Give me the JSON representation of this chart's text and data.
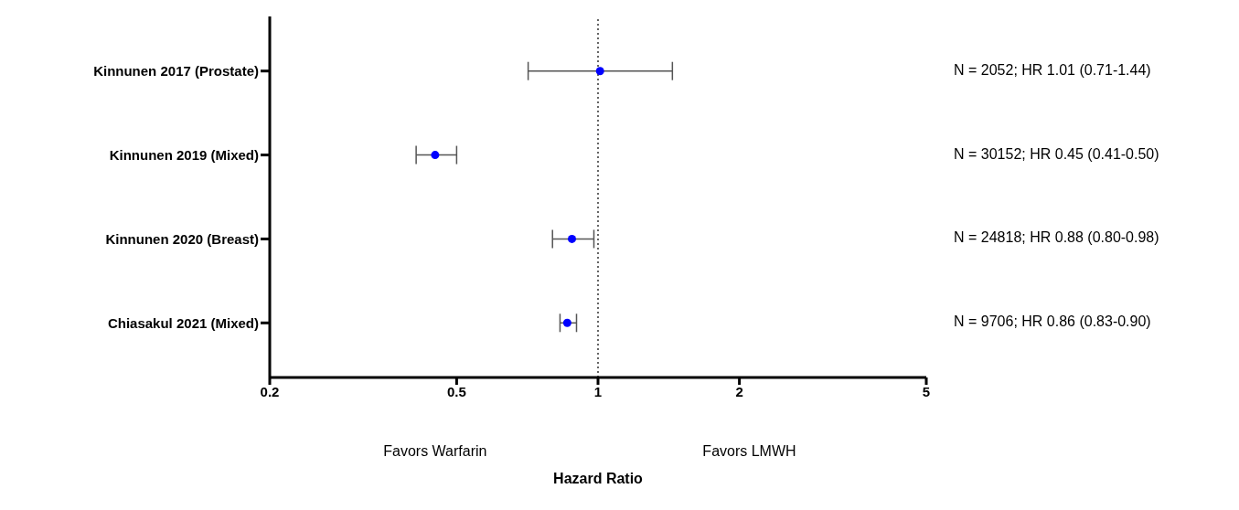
{
  "chart_data": {
    "type": "scatter",
    "orientation": "horizontal",
    "xlabel": "Hazard Ratio",
    "categories": [
      "Kinnunen 2017 (Prostate)",
      "Kinnunen 2019 (Mixed)",
      "Kinnunen 2020 (Breast)",
      "Chiasakul 2021 (Mixed)"
    ],
    "values": [
      1.01,
      0.45,
      0.88,
      0.86
    ],
    "errors": [
      [
        0.71,
        1.44
      ],
      [
        0.41,
        0.5
      ],
      [
        0.8,
        0.98
      ],
      [
        0.83,
        0.9
      ]
    ],
    "color": "#0000ff",
    "marker": "circle",
    "log": "x",
    "xlim": [
      0.2,
      5
    ],
    "xticks": [
      0.2,
      0.5,
      1,
      2,
      5
    ],
    "ref_lines": [
      {
        "axis": "x",
        "value": 1,
        "line_style": "dotted",
        "color": "#333333"
      }
    ],
    "annotations": [
      "Favors Warfarin",
      "Favors LMWH",
      "N = 2052; HR 1.01 (0.71-1.44)",
      "N = 30152; HR 0.45 (0.41-0.50)",
      "N = 24818; HR 0.88 (0.80-0.98)",
      "N = 9706; HR 0.86 (0.83-0.90)"
    ],
    "grid": false,
    "legend": false
  }
}
